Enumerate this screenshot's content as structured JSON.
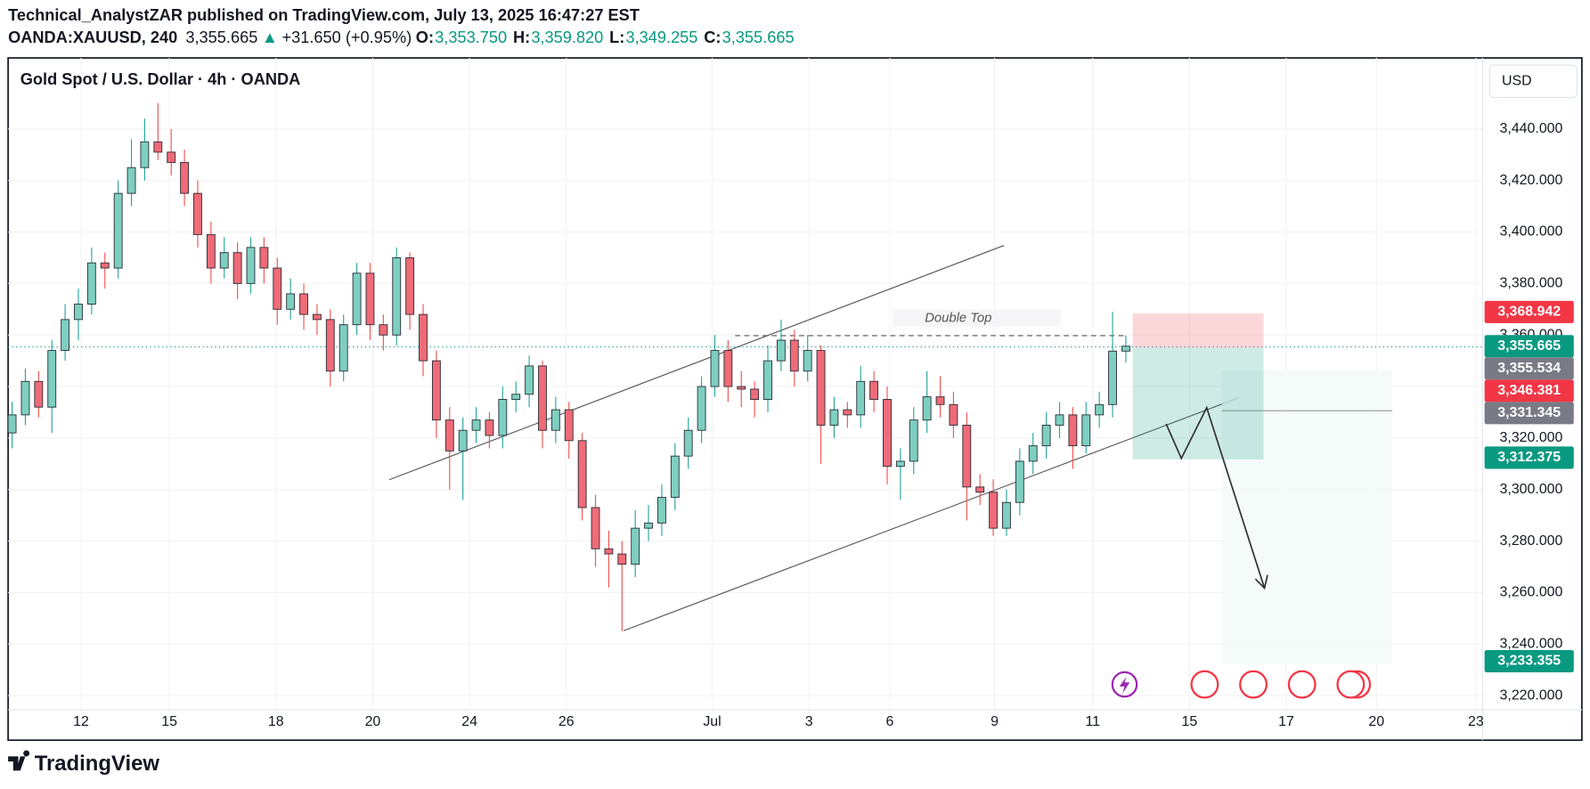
{
  "header": {
    "publisher": "Technical_AnalystZAR published on TradingView.com, July 13, 2025 16:47:27 EST",
    "symbol": "OANDA:XAUUSD, 240",
    "last": "3,355.665",
    "arrow": "▲",
    "change": "+31.650 (+0.95%)",
    "ohlc": [
      {
        "label": "O:",
        "value": "3,353.750"
      },
      {
        "label": "H:",
        "value": "3,359.820"
      },
      {
        "label": "L:",
        "value": "3,349.255"
      },
      {
        "label": "C:",
        "value": "3,355.665"
      }
    ]
  },
  "footer": {
    "logo": "TradingView"
  },
  "chart_data": {
    "type": "candlestick",
    "title": "Gold Spot / U.S. Dollar · 4h · OANDA",
    "currency": "USD",
    "annotation": "Double Top",
    "up_color": "#7ecfc0",
    "down_color": "#ef6b77",
    "xlim": [
      -0.3,
      110.9
    ],
    "xticks": [
      {
        "value": 5.2,
        "label": "12"
      },
      {
        "value": 11.86,
        "label": "15"
      },
      {
        "value": 19.9,
        "label": "18"
      },
      {
        "value": 27.2,
        "label": "20"
      },
      {
        "value": 34.5,
        "label": "24"
      },
      {
        "value": 41.8,
        "label": "26"
      },
      {
        "value": 52.8,
        "label": "Jul"
      },
      {
        "value": 60.1,
        "label": "3"
      },
      {
        "value": 66.2,
        "label": "6"
      },
      {
        "value": 74.1,
        "label": "9"
      },
      {
        "value": 81.5,
        "label": "11"
      },
      {
        "value": 88.8,
        "label": "15"
      },
      {
        "value": 96.1,
        "label": "17"
      },
      {
        "value": 102.9,
        "label": "20"
      },
      {
        "value": 110.4,
        "label": "23"
      }
    ],
    "ylim": [
      3214.5,
      3466.4
    ],
    "yticks": [
      {
        "value": 3220,
        "label": "3,220.000"
      },
      {
        "value": 3240,
        "label": "3,240.000"
      },
      {
        "value": 3260,
        "label": "3,260.000"
      },
      {
        "value": 3280,
        "label": "3,280.000"
      },
      {
        "value": 3300,
        "label": "3,300.000"
      },
      {
        "value": 3320,
        "label": "3,320.000"
      },
      {
        "value": 3340,
        "label": "3,340.000"
      },
      {
        "value": 3360,
        "label": "3,360.000"
      },
      {
        "value": 3380,
        "label": "3,380.000"
      },
      {
        "value": 3400,
        "label": "3,400.000"
      },
      {
        "value": 3420,
        "label": "3,420.000"
      },
      {
        "value": 3440,
        "label": "3,440.000"
      }
    ],
    "price_labels": [
      {
        "value": 3368.942,
        "label": "3,368.942",
        "color": "#f23645"
      },
      {
        "value": 3355.665,
        "label": "3,355.665",
        "color": "#089981"
      },
      {
        "value": 3355.534,
        "label": "3,355.534",
        "color": "#787b86"
      },
      {
        "value": 3346.381,
        "label": "3,346.381",
        "color": "#f23645"
      },
      {
        "value": 3331.345,
        "label": "3,331.345",
        "color": "#787b86"
      },
      {
        "value": 3312.375,
        "label": "3,312.375",
        "color": "#089981"
      },
      {
        "value": 3233.355,
        "label": "3,233.355",
        "color": "#089981"
      }
    ],
    "candles": [
      [
        3322,
        3334,
        3316,
        3329
      ],
      [
        3329,
        3347,
        3325,
        3342
      ],
      [
        3342,
        3346,
        3328,
        3332
      ],
      [
        3332,
        3358,
        3322,
        3354
      ],
      [
        3354,
        3372,
        3350,
        3366
      ],
      [
        3366,
        3378,
        3358,
        3372
      ],
      [
        3372,
        3394,
        3368,
        3388
      ],
      [
        3388,
        3392,
        3378,
        3386
      ],
      [
        3386,
        3420,
        3382,
        3415
      ],
      [
        3415,
        3436,
        3410,
        3425
      ],
      [
        3425,
        3444,
        3420,
        3435
      ],
      [
        3435,
        3450,
        3428,
        3431
      ],
      [
        3431,
        3440,
        3422,
        3427
      ],
      [
        3427,
        3432,
        3410,
        3415
      ],
      [
        3415,
        3420,
        3394,
        3399
      ],
      [
        3399,
        3404,
        3380,
        3386
      ],
      [
        3386,
        3398,
        3382,
        3392
      ],
      [
        3392,
        3396,
        3374,
        3380
      ],
      [
        3380,
        3398,
        3376,
        3394
      ],
      [
        3394,
        3398,
        3380,
        3386
      ],
      [
        3386,
        3390,
        3364,
        3370
      ],
      [
        3370,
        3382,
        3366,
        3376
      ],
      [
        3376,
        3380,
        3362,
        3368
      ],
      [
        3368,
        3372,
        3360,
        3366
      ],
      [
        3366,
        3370,
        3340,
        3346
      ],
      [
        3346,
        3368,
        3342,
        3364
      ],
      [
        3364,
        3388,
        3360,
        3384
      ],
      [
        3384,
        3388,
        3358,
        3364
      ],
      [
        3364,
        3368,
        3354,
        3360
      ],
      [
        3360,
        3394,
        3356,
        3390
      ],
      [
        3390,
        3392,
        3362,
        3368
      ],
      [
        3368,
        3372,
        3344,
        3350
      ],
      [
        3350,
        3354,
        3320,
        3327
      ],
      [
        3327,
        3332,
        3300,
        3315
      ],
      [
        3315,
        3328,
        3296,
        3323
      ],
      [
        3323,
        3332,
        3318,
        3327
      ],
      [
        3327,
        3330,
        3316,
        3321
      ],
      [
        3321,
        3340,
        3316,
        3335
      ],
      [
        3335,
        3342,
        3330,
        3337
      ],
      [
        3337,
        3352,
        3332,
        3348
      ],
      [
        3348,
        3350,
        3316,
        3323
      ],
      [
        3323,
        3336,
        3318,
        3331
      ],
      [
        3331,
        3334,
        3312,
        3319
      ],
      [
        3319,
        3322,
        3288,
        3293
      ],
      [
        3293,
        3298,
        3270,
        3277
      ],
      [
        3277,
        3284,
        3262,
        3275
      ],
      [
        3275,
        3280,
        3245,
        3271
      ],
      [
        3271,
        3292,
        3266,
        3285
      ],
      [
        3285,
        3294,
        3280,
        3287
      ],
      [
        3287,
        3302,
        3282,
        3297
      ],
      [
        3297,
        3318,
        3292,
        3313
      ],
      [
        3313,
        3328,
        3308,
        3323
      ],
      [
        3323,
        3344,
        3318,
        3340
      ],
      [
        3340,
        3360,
        3336,
        3354
      ],
      [
        3354,
        3358,
        3334,
        3340
      ],
      [
        3340,
        3346,
        3332,
        3339
      ],
      [
        3339,
        3342,
        3328,
        3335
      ],
      [
        3335,
        3356,
        3330,
        3350
      ],
      [
        3350,
        3366,
        3346,
        3358
      ],
      [
        3358,
        3362,
        3340,
        3346
      ],
      [
        3346,
        3360,
        3342,
        3354
      ],
      [
        3354,
        3356,
        3310,
        3325
      ],
      [
        3325,
        3336,
        3320,
        3331
      ],
      [
        3331,
        3334,
        3324,
        3329
      ],
      [
        3329,
        3348,
        3324,
        3342
      ],
      [
        3342,
        3346,
        3330,
        3335
      ],
      [
        3335,
        3340,
        3302,
        3309
      ],
      [
        3309,
        3316,
        3296,
        3311
      ],
      [
        3311,
        3332,
        3306,
        3327
      ],
      [
        3327,
        3346,
        3322,
        3336
      ],
      [
        3336,
        3344,
        3328,
        3333
      ],
      [
        3333,
        3338,
        3320,
        3325
      ],
      [
        3325,
        3330,
        3288,
        3301
      ],
      [
        3301,
        3306,
        3294,
        3299
      ],
      [
        3299,
        3304,
        3282,
        3285
      ],
      [
        3285,
        3300,
        3282,
        3295
      ],
      [
        3295,
        3316,
        3290,
        3311
      ],
      [
        3311,
        3322,
        3306,
        3317
      ],
      [
        3317,
        3330,
        3312,
        3325
      ],
      [
        3325,
        3334,
        3320,
        3329
      ],
      [
        3329,
        3332,
        3308,
        3317
      ],
      [
        3317,
        3334,
        3314,
        3329
      ],
      [
        3329,
        3338,
        3324,
        3333
      ],
      [
        3333,
        3369,
        3328,
        3353.75
      ],
      [
        3353.75,
        3359.82,
        3349.255,
        3355.665
      ]
    ]
  }
}
